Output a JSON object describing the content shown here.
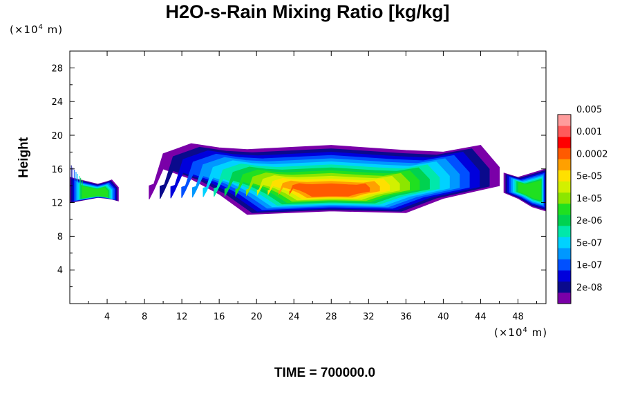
{
  "chart_data": {
    "type": "heatmap",
    "title": "H2O-s-Rain Mixing Ratio [kg/kg]",
    "ylabel": "Height",
    "x_unit": {
      "prefix": "(×10",
      "exp": "4",
      "suffix": " m)"
    },
    "y_unit": {
      "prefix": "(×10",
      "exp": "4",
      "suffix": " m)"
    },
    "xlim": [
      0,
      51
    ],
    "ylim": [
      0,
      30
    ],
    "x_ticks": [
      4,
      8,
      12,
      16,
      20,
      24,
      28,
      32,
      36,
      40,
      44,
      48
    ],
    "y_ticks": [
      4,
      8,
      12,
      16,
      20,
      24,
      28
    ],
    "footer": "TIME = 700000.0",
    "colorbar": {
      "colors": [
        "#7a00a8",
        "#0a0a8c",
        "#0000dc",
        "#0050ff",
        "#0098ff",
        "#00d2ff",
        "#00e8aa",
        "#00d250",
        "#20e020",
        "#8ce600",
        "#d2f000",
        "#ffe000",
        "#ffa000",
        "#ff5a00",
        "#ff0000",
        "#ff5a5a",
        "#ff9c9c"
      ],
      "labels": [
        "2e-08",
        "1e-07",
        "5e-07",
        "2e-06",
        "1e-05",
        "5e-05",
        "0.0002",
        "0.001",
        "0.005"
      ]
    },
    "regions": [
      {
        "name": "left-edge",
        "bands": [
          [
            0,
            14.8,
            16.7
          ],
          [
            0,
            12.8,
            16.2
          ],
          [
            0,
            12.0,
            15.0
          ],
          [
            3,
            12.6,
            14.2
          ],
          [
            4,
            12.5,
            14.5
          ],
          [
            4.5,
            12.4,
            14.7
          ],
          [
            5.2,
            12.2,
            13.8
          ]
        ]
      },
      {
        "name": "main-band",
        "bands": [
          [
            8.5,
            12.4,
            14.0
          ],
          [
            9,
            13.5,
            14.2
          ],
          [
            10,
            16.0,
            17.8
          ],
          [
            13,
            14.8,
            19.0
          ],
          [
            16,
            13.0,
            18.5
          ],
          [
            19,
            10.6,
            18.3
          ],
          [
            28,
            11.0,
            18.8
          ],
          [
            36,
            10.8,
            18.2
          ],
          [
            40,
            12.5,
            18.0
          ],
          [
            44,
            13.5,
            18.8
          ],
          [
            46,
            14.0,
            16.2
          ]
        ]
      },
      {
        "name": "right-edge",
        "bands": [
          [
            46.5,
            13.2,
            15.5
          ],
          [
            48,
            12.5,
            15.0
          ],
          [
            49.5,
            11.5,
            15.5
          ],
          [
            51,
            11.0,
            16.0
          ]
        ]
      }
    ]
  }
}
